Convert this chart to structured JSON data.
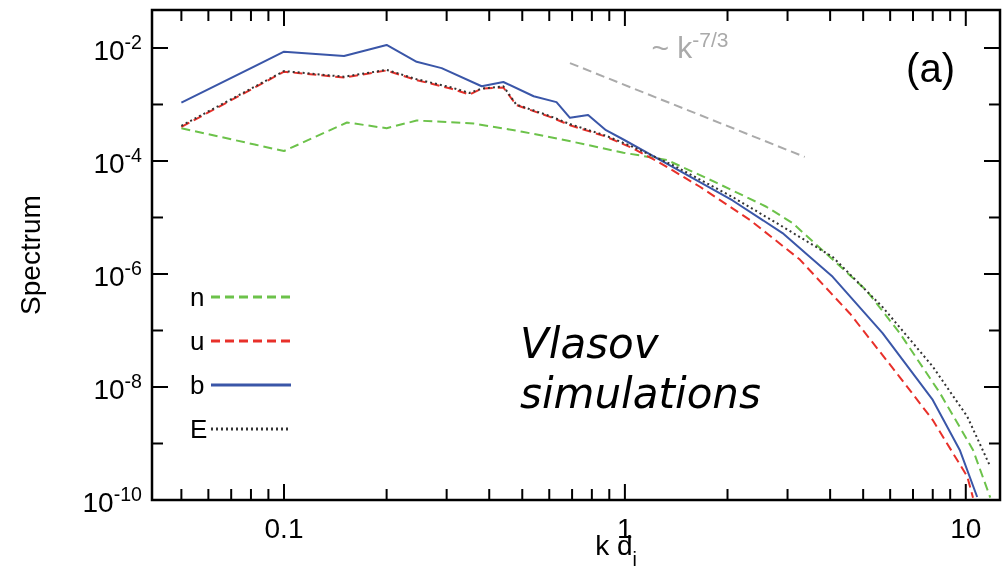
{
  "chart_data": {
    "type": "line",
    "xlabel": "k d$_{i}$",
    "ylabel": "Spectrum",
    "log": "xy",
    "xlim": [
      0.041,
      12.6
    ],
    "ylim": [
      1e-10,
      0.047
    ],
    "xticks": [
      {
        "value": 0.05,
        "label": null
      },
      {
        "value": 0.06,
        "label": null
      },
      {
        "value": 0.07,
        "label": null
      },
      {
        "value": 0.08,
        "label": null
      },
      {
        "value": 0.09,
        "label": null
      },
      0.1,
      {
        "value": 0.2,
        "label": null
      },
      {
        "value": 0.3,
        "label": null
      },
      {
        "value": 0.4,
        "label": null
      },
      {
        "value": 0.5,
        "label": null
      },
      {
        "value": 0.6,
        "label": null
      },
      {
        "value": 0.7,
        "label": null
      },
      {
        "value": 0.8,
        "label": null
      },
      {
        "value": 0.9,
        "label": null
      },
      1,
      {
        "value": 2,
        "label": null
      },
      {
        "value": 3,
        "label": null
      },
      {
        "value": 4,
        "label": null
      },
      {
        "value": 5,
        "label": null
      },
      {
        "value": 6,
        "label": null
      },
      {
        "value": 7,
        "label": null
      },
      {
        "value": 8,
        "label": null
      },
      {
        "value": 9,
        "label": null
      },
      10
    ],
    "yticks": [
      {
        "value": 1e-10,
        "label": "10$^{-10}$"
      },
      {
        "value": 1e-09,
        "label": null
      },
      {
        "value": 1e-08,
        "label": "10$^{-8}$"
      },
      {
        "value": 1e-07,
        "label": null
      },
      {
        "value": 1e-06,
        "label": "10$^{-6}$"
      },
      {
        "value": 1e-05,
        "label": null
      },
      {
        "value": 0.0001,
        "label": "10$^{-4}$"
      },
      {
        "value": 0.001,
        "label": null
      },
      {
        "value": 0.01,
        "label": "10$^{-2}$"
      }
    ],
    "grid": false,
    "legend": "bottom left",
    "marker": "none",
    "series": [
      {
        "name": "n",
        "color": "#6cc24a",
        "line_style": "dashed",
        "x": [
          0.05,
          0.1,
          0.153,
          0.2,
          0.245,
          0.36,
          0.5,
          0.7,
          0.99,
          1.33,
          1.86,
          2.6,
          3.1,
          4.07,
          5.1,
          6.4,
          8.4,
          10.5,
          11.8
        ],
        "values": [
          0.00038,
          0.00015,
          0.00048,
          0.00038,
          0.00052,
          0.00046,
          0.00033,
          0.00022,
          0.00014,
          0.000104,
          4.1e-05,
          1.55e-05,
          8e-06,
          1.8e-06,
          5.2e-07,
          9e-08,
          7.8e-09,
          7.7e-10,
          1.1e-10
        ]
      },
      {
        "name": "u",
        "color": "#e8302a",
        "line_style": "dashed",
        "x": [
          0.05,
          0.1,
          0.15,
          0.2,
          0.245,
          0.31,
          0.35,
          0.38,
          0.44,
          0.48,
          0.6,
          0.69,
          0.88,
          1.05,
          1.27,
          1.66,
          2.33,
          3.26,
          4.57,
          6.4,
          8.0,
          10.1,
          10.5
        ],
        "values": [
          0.0004,
          0.0038,
          0.003,
          0.004,
          0.0027,
          0.0019,
          0.0015,
          0.0019,
          0.002,
          0.00098,
          0.00061,
          0.00043,
          0.00027,
          0.00017,
          9.2e-05,
          3.5e-05,
          9e-06,
          1.8e-06,
          2e-07,
          1.5e-08,
          2.6e-09,
          2.6e-10,
          1.1e-10
        ]
      },
      {
        "name": "b",
        "color": "#3a56a8",
        "line_style": "solid",
        "x": [
          0.05,
          0.1,
          0.15,
          0.2,
          0.245,
          0.29,
          0.38,
          0.44,
          0.54,
          0.63,
          0.69,
          0.78,
          0.88,
          0.99,
          1.38,
          2.07,
          2.9,
          4.07,
          5.7,
          8.0,
          9.6,
          10.8
        ],
        "values": [
          0.00108,
          0.0086,
          0.0072,
          0.0113,
          0.0057,
          0.0044,
          0.0021,
          0.0025,
          0.0014,
          0.0011,
          0.00058,
          0.00065,
          0.00035,
          0.00024,
          7.9e-05,
          2e-05,
          5.3e-06,
          8.9e-07,
          9e-08,
          5.9e-09,
          7.7e-10,
          1.13e-10
        ]
      },
      {
        "name": "E",
        "color": "#333333",
        "line_style": "dotted",
        "x": [
          0.05,
          0.1,
          0.15,
          0.2,
          0.245,
          0.31,
          0.35,
          0.38,
          0.44,
          0.48,
          0.6,
          0.69,
          0.88,
          1.05,
          1.38,
          2.07,
          2.9,
          4.07,
          5.7,
          8.0,
          10.1,
          11.8
        ],
        "values": [
          0.00042,
          0.0039,
          0.0031,
          0.0041,
          0.0028,
          0.002,
          0.0016,
          0.0019,
          0.0021,
          0.001,
          0.00063,
          0.00045,
          0.00028,
          0.00018,
          8.5e-05,
          2.3e-05,
          6.9e-06,
          2e-06,
          2.6e-07,
          2.3e-08,
          3e-09,
          3.9e-10
        ]
      },
      {
        "color": "#aaaaaa",
        "line_style": "dashed",
        "x": [
          0.69,
          3.37
        ],
        "values": [
          0.0054,
          0.000118
        ]
      }
    ],
    "annotations": [
      "~ k$^{-7/3}$",
      "(a)",
      "Vlasov simulations"
    ]
  }
}
